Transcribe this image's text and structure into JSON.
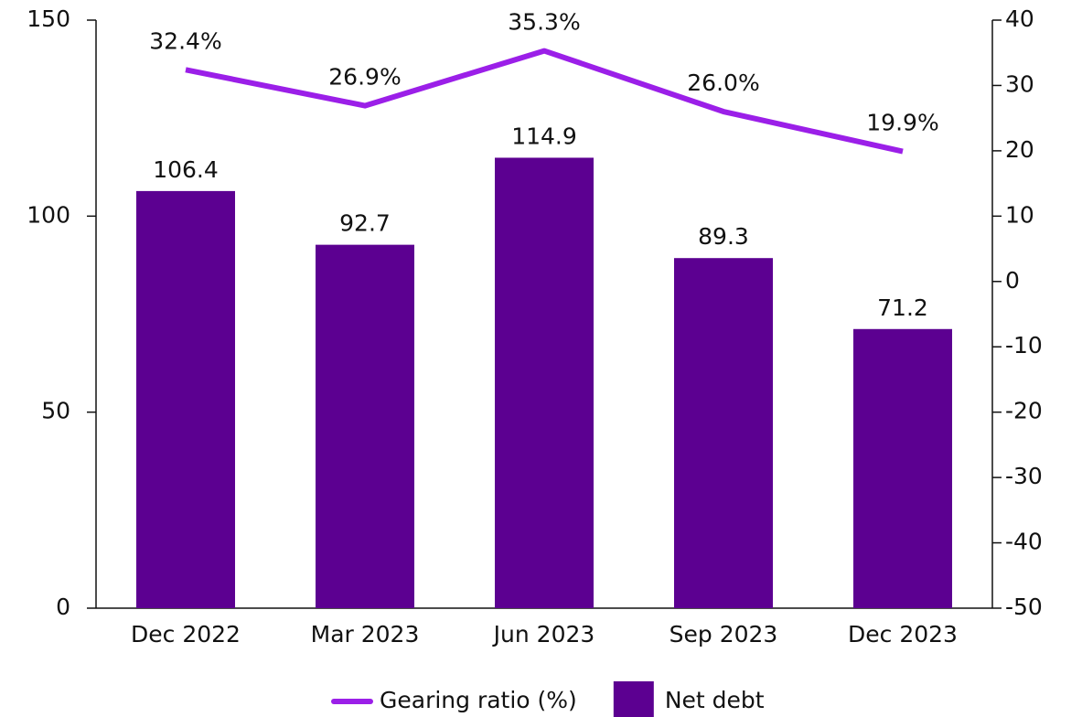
{
  "chart_data": {
    "type": "bar",
    "categories": [
      "Dec 2022",
      "Mar 2023",
      "Jun 2023",
      "Sep 2023",
      "Dec 2023"
    ],
    "series": [
      {
        "name": "Gearing ratio (%)",
        "type": "line",
        "axis": "y2",
        "color": "#9b1fe8",
        "values": [
          32.4,
          26.9,
          35.3,
          26.0,
          19.9
        ],
        "value_labels": [
          "32.4%",
          "26.9%",
          "35.3%",
          "26.0%",
          "19.9%"
        ]
      },
      {
        "name": "Net debt",
        "type": "bar",
        "color": "#5c0091",
        "values": [
          106.4,
          92.7,
          114.9,
          89.3,
          71.2
        ]
      }
    ],
    "ylim": [
      0,
      150
    ],
    "yticks": [
      0,
      50,
      100,
      150
    ],
    "y2lim": [
      -50,
      40
    ],
    "y2ticks": [
      -50,
      -40,
      -30,
      -20,
      -10,
      0,
      10,
      20,
      30,
      40
    ],
    "legend": "bottom"
  }
}
